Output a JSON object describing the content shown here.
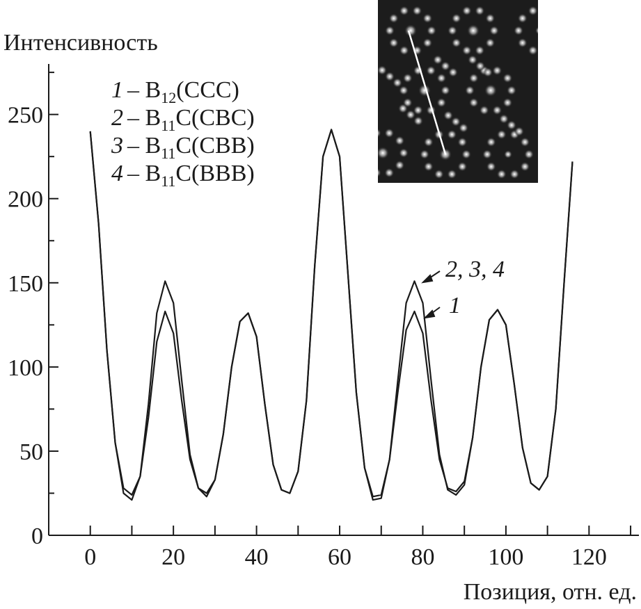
{
  "chart_data": {
    "type": "line",
    "ylabel": "Интенсивность",
    "xlabel": "Позиция, отн. ед.",
    "xlim": [
      -10,
      132
    ],
    "ylim": [
      0,
      280
    ],
    "xticks": [
      0,
      20,
      40,
      60,
      80,
      100,
      120
    ],
    "xticks_minor": [
      10,
      30,
      50,
      70,
      90,
      110,
      130
    ],
    "yticks": [
      0,
      50,
      100,
      150,
      200,
      250
    ],
    "yticks_minor": [
      25,
      75,
      125,
      175,
      225,
      275
    ],
    "x": [
      0,
      2,
      4,
      6,
      8,
      10,
      12,
      14,
      16,
      18,
      20,
      22,
      24,
      26,
      28,
      30,
      32,
      34,
      36,
      38,
      40,
      42,
      44,
      46,
      48,
      50,
      52,
      54,
      56,
      58,
      60,
      62,
      64,
      66,
      68,
      70,
      72,
      74,
      76,
      78,
      80,
      82,
      84,
      86,
      88,
      90,
      92,
      94,
      96,
      98,
      100,
      102,
      104,
      106,
      108,
      110,
      112,
      114,
      116
    ],
    "series": [
      {
        "name": "1",
        "color": "#1a1a1a",
        "values": [
          240,
          185,
          110,
          55,
          28,
          24,
          35,
          70,
          115,
          133,
          120,
          80,
          45,
          28,
          25,
          33,
          60,
          100,
          127,
          132,
          118,
          78,
          42,
          27,
          25,
          38,
          80,
          160,
          225,
          241,
          225,
          155,
          85,
          40,
          23,
          24,
          45,
          85,
          122,
          133,
          120,
          80,
          45,
          28,
          26,
          32,
          58,
          100,
          128,
          134,
          125,
          90,
          52,
          31,
          27,
          35,
          75,
          150,
          222
        ]
      },
      {
        "name": "2, 3, 4",
        "color": "#1a1a1a",
        "values": [
          240,
          185,
          110,
          55,
          25,
          21,
          35,
          78,
          132,
          151,
          138,
          92,
          48,
          28,
          23,
          33,
          60,
          100,
          127,
          132,
          118,
          78,
          42,
          27,
          25,
          38,
          80,
          160,
          225,
          241,
          225,
          155,
          85,
          40,
          21,
          22,
          45,
          92,
          138,
          151,
          138,
          92,
          48,
          27,
          24,
          30,
          58,
          100,
          128,
          134,
          125,
          90,
          52,
          31,
          27,
          35,
          75,
          150,
          222
        ]
      }
    ],
    "legend": [
      {
        "key": "1",
        "text": "– B",
        "sub": "12",
        "tail": "(CCC)"
      },
      {
        "key": "2",
        "text": "– B",
        "sub": "11",
        "tail": "C(CBC)"
      },
      {
        "key": "3",
        "text": "– B",
        "sub": "11",
        "tail": "C(CBB)"
      },
      {
        "key": "4",
        "text": "– B",
        "sub": "11",
        "tail": "C(BBB)"
      }
    ]
  }
}
